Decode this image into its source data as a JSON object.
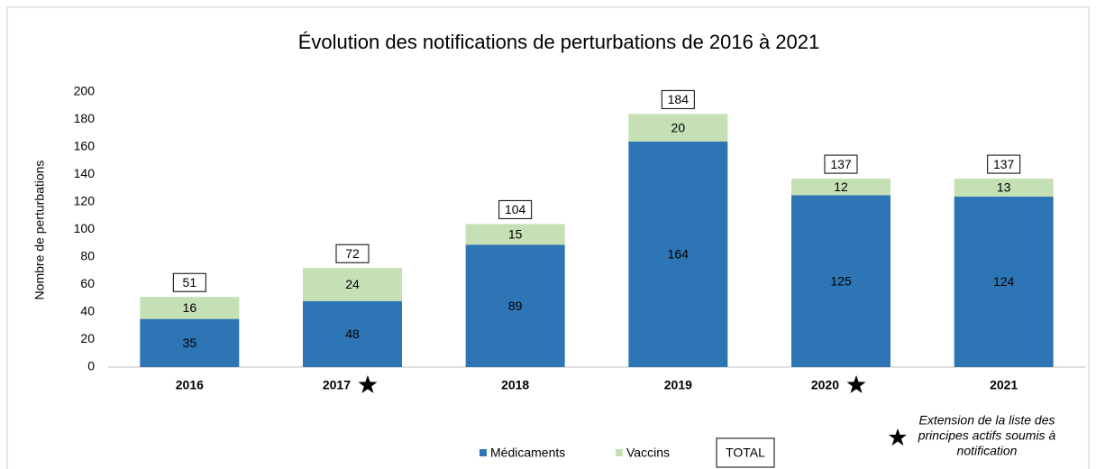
{
  "chart_data": {
    "type": "stacked_bar",
    "title": "Évolution des notifications de perturbations de 2016 à 2021",
    "y_label": "Nombre de perturbations",
    "categories": [
      "2016",
      "2017",
      "2018",
      "2019",
      "2020",
      "2021"
    ],
    "flagged": [
      false,
      true,
      false,
      false,
      true,
      false
    ],
    "series": [
      {
        "name": "Médicaments",
        "color": "#2e75b6",
        "values": [
          35,
          48,
          89,
          164,
          125,
          124
        ]
      },
      {
        "name": "Vaccins",
        "color": "#c5e0b4",
        "values": [
          16,
          24,
          15,
          20,
          12,
          13
        ]
      }
    ],
    "totals": [
      51,
      72,
      104,
      184,
      137,
      137
    ],
    "total_label": "TOTAL",
    "note": [
      "Extension de la liste des",
      "principes actifs soumis à",
      "notification"
    ],
    "ylim": [
      0,
      200
    ],
    "yticks": [
      0,
      20,
      40,
      60,
      80,
      100,
      120,
      140,
      160,
      180,
      200
    ],
    "grid": false
  }
}
